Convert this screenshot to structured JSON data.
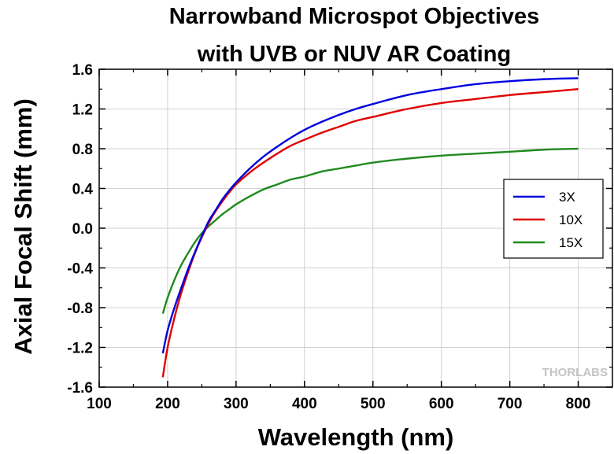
{
  "chart_data": {
    "type": "line",
    "title_lines": [
      "Narrowband Microspot Objectives",
      "with UVB or NUV AR Coating"
    ],
    "xlabel": "Wavelength (nm)",
    "ylabel": "Axial Focal Shift (mm)",
    "xlim": [
      100,
      850
    ],
    "ylim": [
      -1.6,
      1.6
    ],
    "xticks": [
      100,
      200,
      300,
      400,
      500,
      600,
      700,
      800
    ],
    "yticks": [
      1.6,
      1.2,
      0.8,
      0.4,
      0.0,
      -0.4,
      -0.8,
      -1.2,
      -1.6
    ],
    "ytick_labels": [
      "1.6",
      "1.2",
      "0.8",
      "0.4",
      "0.0",
      "-0.4",
      "-0.8",
      "-1.2",
      "-1.6"
    ],
    "grid": true,
    "legend_position": "right",
    "series": [
      {
        "name": "3X",
        "color": "#0000e0",
        "x": [
          193,
          200,
          210,
          220,
          230,
          240,
          250,
          260,
          270,
          280,
          290,
          300,
          320,
          340,
          360,
          380,
          400,
          425,
          450,
          475,
          500,
          550,
          600,
          650,
          700,
          750,
          800
        ],
        "y": [
          -1.26,
          -1.03,
          -0.8,
          -0.6,
          -0.41,
          -0.24,
          -0.08,
          0.07,
          0.18,
          0.29,
          0.38,
          0.46,
          0.6,
          0.72,
          0.82,
          0.91,
          0.99,
          1.07,
          1.14,
          1.2,
          1.25,
          1.34,
          1.4,
          1.45,
          1.48,
          1.5,
          1.51
        ]
      },
      {
        "name": "10X",
        "color": "#e00000",
        "x": [
          193,
          200,
          210,
          220,
          230,
          240,
          250,
          260,
          270,
          280,
          290,
          300,
          320,
          340,
          360,
          380,
          400,
          425,
          450,
          475,
          500,
          550,
          600,
          650,
          700,
          750,
          800
        ],
        "y": [
          -1.5,
          -1.2,
          -0.9,
          -0.65,
          -0.44,
          -0.25,
          -0.09,
          0.05,
          0.17,
          0.27,
          0.36,
          0.44,
          0.56,
          0.66,
          0.75,
          0.83,
          0.89,
          0.96,
          1.02,
          1.08,
          1.12,
          1.2,
          1.26,
          1.3,
          1.34,
          1.37,
          1.4
        ]
      },
      {
        "name": "15X",
        "color": "#1f8a1f",
        "x": [
          193,
          200,
          210,
          220,
          230,
          240,
          250,
          260,
          270,
          280,
          290,
          300,
          320,
          340,
          360,
          380,
          400,
          425,
          450,
          475,
          500,
          550,
          600,
          650,
          700,
          750,
          800
        ],
        "y": [
          -0.86,
          -0.7,
          -0.52,
          -0.37,
          -0.25,
          -0.14,
          -0.05,
          0.02,
          0.08,
          0.14,
          0.19,
          0.24,
          0.32,
          0.39,
          0.44,
          0.49,
          0.52,
          0.57,
          0.6,
          0.63,
          0.66,
          0.7,
          0.73,
          0.75,
          0.77,
          0.79,
          0.8
        ]
      }
    ],
    "watermark": "THORLABS"
  }
}
